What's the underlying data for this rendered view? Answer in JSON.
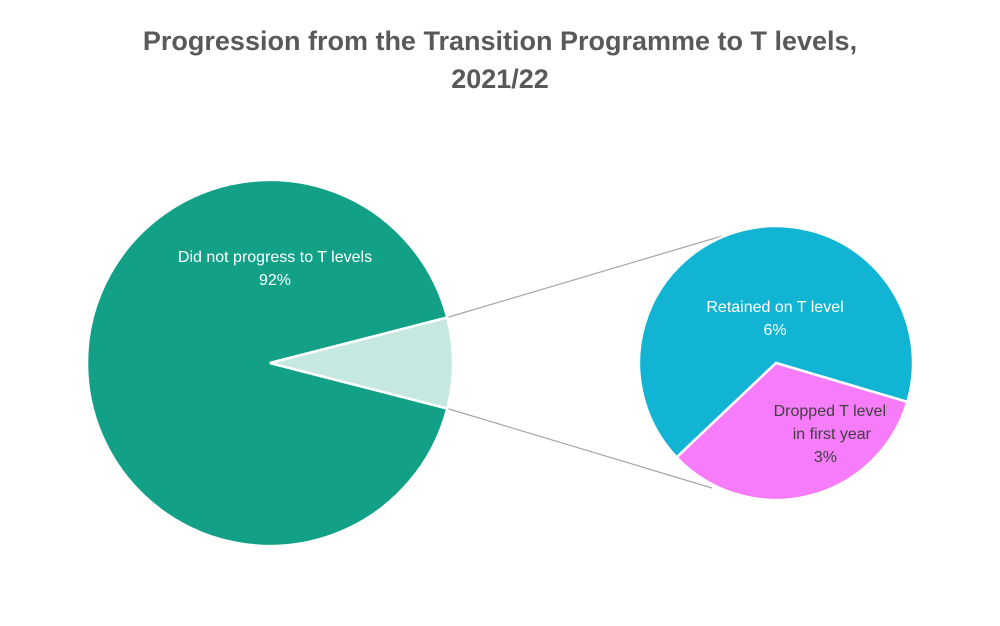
{
  "chart_data": {
    "type": "pie",
    "subtype": "pie-of-pie",
    "title": "Progression from the Transition Programme to T levels, 2021/22",
    "title_lines": [
      "Progression from the Transition Programme to T levels,",
      "2021/22"
    ],
    "main_pie": {
      "slices": [
        {
          "label_lines": [
            "Did not progress to T levels"
          ],
          "value_text": "92%",
          "value": 92,
          "color": "#12A087",
          "text_color": "#ffffff"
        },
        {
          "label_lines": [],
          "value_text": "",
          "value": 8,
          "color": "#C5E8E1",
          "text_color": "#ffffff",
          "exploded_to_secondary": true
        }
      ]
    },
    "secondary_pie": {
      "slices": [
        {
          "label_lines": [
            "Retained on T level"
          ],
          "value_text": "6%",
          "value": 6,
          "color": "#12B4D4",
          "text_color": "#ffffff"
        },
        {
          "label_lines": [
            "Dropped T level",
            "in first year"
          ],
          "value_text": "3%",
          "value": 3,
          "color": "#F77CF9",
          "text_color": "#404040"
        }
      ]
    },
    "connector_color": "#A6A6A6",
    "slice_border_color": "#ffffff"
  }
}
